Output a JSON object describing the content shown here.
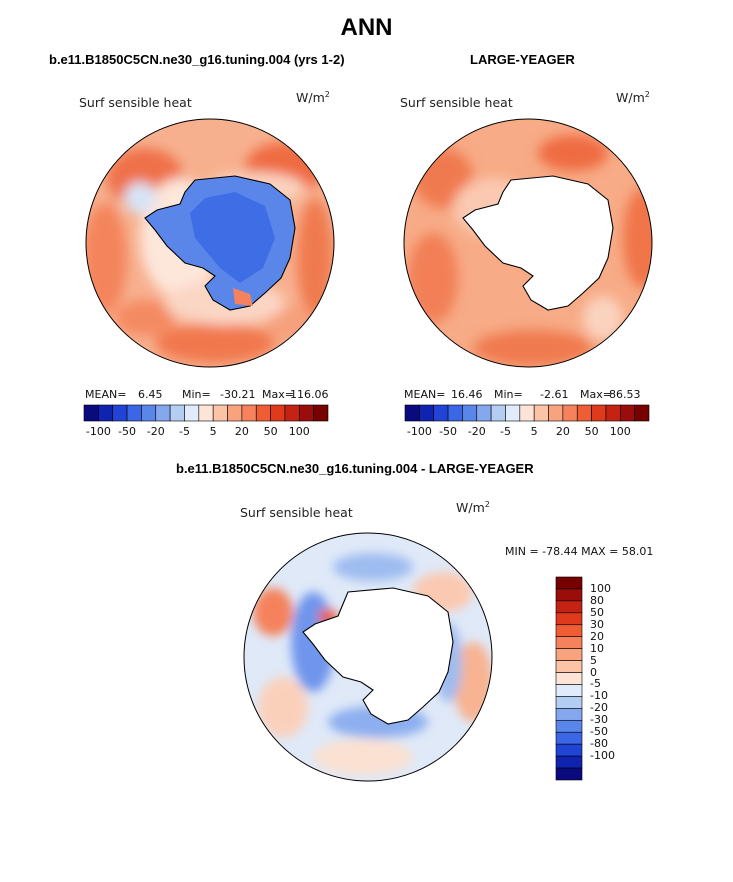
{
  "page": {
    "title": "ANN",
    "left_subtitle": "b.e11.B1850C5CN.ne30_g16.tuning.004 (yrs 1-2)",
    "right_subtitle": "LARGE-YEAGER",
    "diff_subtitle": "b.e11.B1850C5CN.ne30_g16.tuning.004 - LARGE-YEAGER"
  },
  "chart_data": [
    {
      "type": "heatmap",
      "projection": "south-polar stereographic",
      "variable": "Surf sensible heat",
      "units": "W/m²",
      "stats": {
        "mean_label": "MEAN=",
        "mean": "6.45",
        "min_label": "Min=",
        "min": "-30.21",
        "max_label": "Max=",
        "max": "116.06"
      },
      "colorbar_labels": [
        "-100",
        "-50",
        "-20",
        "-5",
        "5",
        "20",
        "50",
        "100"
      ],
      "levels": [
        -100,
        -80,
        -50,
        -30,
        -20,
        -10,
        -5,
        0,
        5,
        10,
        20,
        30,
        50,
        80,
        100
      ],
      "antarctica_masked": false
    },
    {
      "type": "heatmap",
      "projection": "south-polar stereographic",
      "variable": "Surf sensible heat",
      "units": "W/m²",
      "stats": {
        "mean_label": "MEAN=",
        "mean": "16.46",
        "min_label": "Min=",
        "min": "-2.61",
        "max_label": "Max=",
        "max": "86.53"
      },
      "colorbar_labels": [
        "-100",
        "-50",
        "-20",
        "-5",
        "5",
        "20",
        "50",
        "100"
      ],
      "levels": [
        -100,
        -80,
        -50,
        -30,
        -20,
        -10,
        -5,
        0,
        5,
        10,
        20,
        30,
        50,
        80,
        100
      ],
      "antarctica_masked": true
    },
    {
      "type": "heatmap",
      "projection": "south-polar stereographic",
      "variable": "Surf sensible heat",
      "units": "W/m²",
      "stats_text": "MIN = -78.44 MAX =  58.01",
      "colorbar_labels": [
        "100",
        "80",
        "50",
        "30",
        "20",
        "10",
        "5",
        "0",
        "-5",
        "-10",
        "-20",
        "-30",
        "-50",
        "-80",
        "-100"
      ],
      "antarctica_masked": true
    }
  ],
  "colors": {
    "scale": [
      "#0a0a7e",
      "#1022b0",
      "#1f44d6",
      "#3b66e6",
      "#5a86ea",
      "#84a7ee",
      "#b4cdf2",
      "#e0ecfb",
      "#fde4d6",
      "#fbc4a6",
      "#f8a37e",
      "#f5825c",
      "#ef5d35",
      "#e03a1c",
      "#c42313",
      "#9a0d0a",
      "#770000"
    ]
  }
}
